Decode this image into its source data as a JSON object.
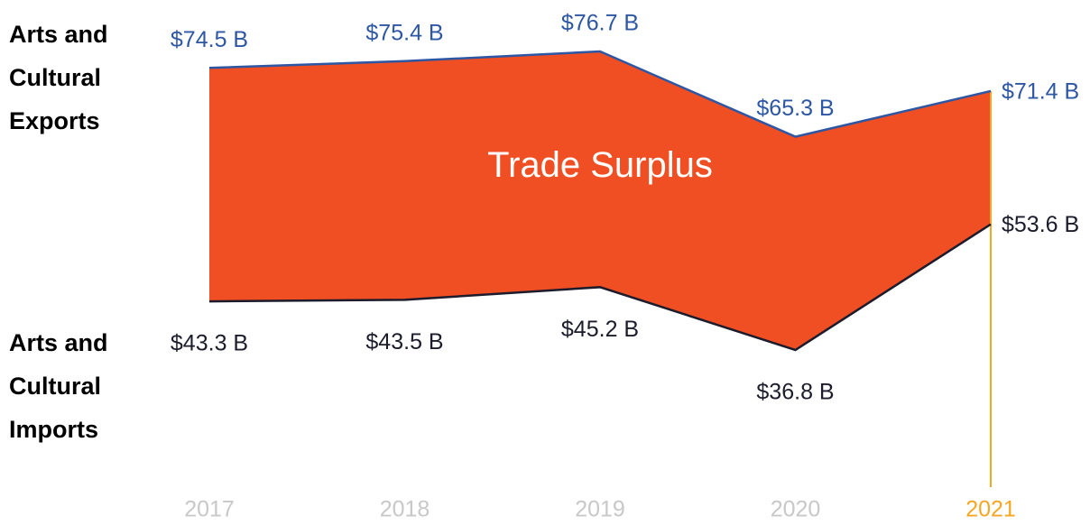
{
  "chart_data": {
    "type": "band",
    "categories": [
      "2017",
      "2018",
      "2019",
      "2020",
      "2021"
    ],
    "series": [
      {
        "name": "Arts and Cultural Exports",
        "color": "#2e57a3",
        "values": [
          74.5,
          75.4,
          76.7,
          65.3,
          71.4
        ],
        "value_labels": [
          "$74.5 B",
          "$75.4 B",
          "$76.7 B",
          "$65.3 B",
          "$71.4 B"
        ]
      },
      {
        "name": "Arts and Cultural Imports",
        "color": "#1c1c2c",
        "values": [
          43.3,
          43.5,
          45.2,
          36.8,
          53.6
        ],
        "value_labels": [
          "$43.3 B",
          "$43.5 B",
          "$45.2 B",
          "$36.8 B",
          "$53.6 B"
        ]
      }
    ],
    "band_label": "Trade Surplus",
    "band_color": "#f04e23",
    "highlight_index": 4,
    "highlight_color": "#f5a623",
    "category_color": "#c8c8c8"
  }
}
